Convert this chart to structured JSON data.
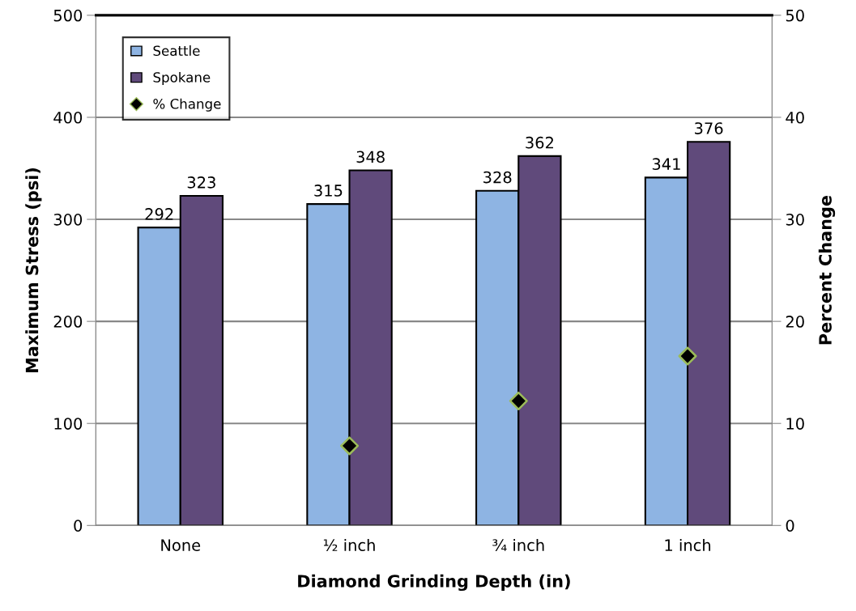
{
  "chart_data": {
    "type": "bar",
    "xlabel": "Diamond Grinding Depth (in)",
    "ylabel": "Maximum Stress (psi)",
    "y2label": "Percent Change",
    "categories": [
      "None",
      "½ inch",
      "¾ inch",
      "1 inch"
    ],
    "series": [
      {
        "name": "Seattle",
        "color": "#8eb4e3",
        "values": [
          292,
          315,
          328,
          341
        ]
      },
      {
        "name": "Spokane",
        "color": "#604a7b",
        "values": [
          323,
          348,
          362,
          376
        ]
      },
      {
        "name": "% Change",
        "type": "scatter",
        "axis": "y2",
        "marker": "diamond",
        "color": "#000000",
        "data_labels": false,
        "values": [
          null,
          7.8,
          12.2,
          16.6
        ]
      }
    ],
    "data_labels": true,
    "ylim": [
      0,
      500
    ],
    "yticks": [
      0,
      100,
      200,
      300,
      400,
      500
    ],
    "y2lim": [
      0,
      50
    ],
    "y2ticks": [
      0,
      10,
      20,
      30,
      40,
      50
    ],
    "grid": "y",
    "legend": "top left"
  }
}
